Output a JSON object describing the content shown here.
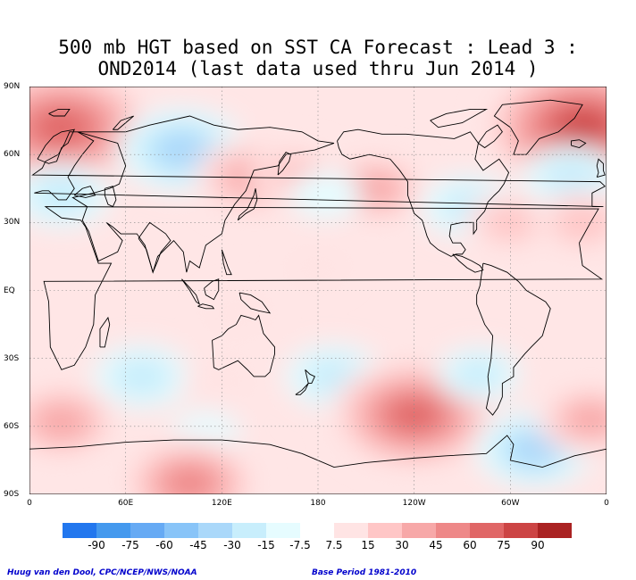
{
  "title": {
    "line1": "500 mb HGT based on SST CA Forecast : Lead 3 :",
    "line2": "OND2014 (last data used thru Jun 2014 )"
  },
  "map": {
    "lat_labels": [
      {
        "text": "90N",
        "lat": 90
      },
      {
        "text": "60N",
        "lat": 60
      },
      {
        "text": "30N",
        "lat": 30
      },
      {
        "text": "EQ",
        "lat": 0
      },
      {
        "text": "30S",
        "lat": -30
      },
      {
        "text": "60S",
        "lat": -60
      },
      {
        "text": "90S",
        "lat": -90
      }
    ],
    "lon_labels": [
      {
        "text": "0",
        "lon": 0
      },
      {
        "text": "60E",
        "lon": 60
      },
      {
        "text": "120E",
        "lon": 120
      },
      {
        "text": "180",
        "lon": 180
      },
      {
        "text": "120W",
        "lon": 240
      },
      {
        "text": "60W",
        "lon": 300
      },
      {
        "text": "0",
        "lon": 360
      }
    ],
    "anomaly_centers": [
      {
        "lon": 20,
        "lat": 72,
        "value": 70
      },
      {
        "lon": 345,
        "lat": 72,
        "value": 75
      },
      {
        "lon": 95,
        "lat": 62,
        "value": -40
      },
      {
        "lon": 20,
        "lat": 42,
        "value": -25
      },
      {
        "lon": 140,
        "lat": 50,
        "value": 35
      },
      {
        "lon": 165,
        "lat": 52,
        "value": 20
      },
      {
        "lon": 215,
        "lat": 45,
        "value": 30
      },
      {
        "lon": 185,
        "lat": 42,
        "value": -12
      },
      {
        "lon": 275,
        "lat": 37,
        "value": -25
      },
      {
        "lon": 300,
        "lat": 30,
        "value": 22
      },
      {
        "lon": 338,
        "lat": 50,
        "value": -25
      },
      {
        "lon": 345,
        "lat": 30,
        "value": 25
      },
      {
        "lon": 70,
        "lat": -38,
        "value": -25
      },
      {
        "lon": 130,
        "lat": -10,
        "value": 10
      },
      {
        "lon": 180,
        "lat": 10,
        "value": 8
      },
      {
        "lon": 190,
        "lat": -38,
        "value": -25
      },
      {
        "lon": 118,
        "lat": -40,
        "value": 12
      },
      {
        "lon": 240,
        "lat": -55,
        "value": 60
      },
      {
        "lon": 280,
        "lat": -37,
        "value": -18
      },
      {
        "lon": 315,
        "lat": -70,
        "value": -35
      },
      {
        "lon": 20,
        "lat": -58,
        "value": 35
      },
      {
        "lon": 110,
        "lat": -63,
        "value": -10
      },
      {
        "lon": 100,
        "lat": -85,
        "value": 45
      },
      {
        "lon": 350,
        "lat": -57,
        "value": 30
      }
    ]
  },
  "colorbar": {
    "colors": [
      "#2277ee",
      "#4499ee",
      "#66aaf4",
      "#88c4f8",
      "#aad8fa",
      "#c8eefc",
      "#e6fcff",
      "#ffffff",
      "#ffe4e4",
      "#ffc6c6",
      "#f7a8a8",
      "#ee8888",
      "#e06666",
      "#cc4444",
      "#aa2222"
    ],
    "labels": [
      "-90",
      "-75",
      "-60",
      "-45",
      "-30",
      "-15",
      "-7.5",
      "7.5",
      "15",
      "30",
      "45",
      "60",
      "75",
      "90"
    ]
  },
  "footer": {
    "left": "Huug van den Dool, CPC/NCEP/NWS/NOAA",
    "right": "Base Period 1981-2010"
  }
}
